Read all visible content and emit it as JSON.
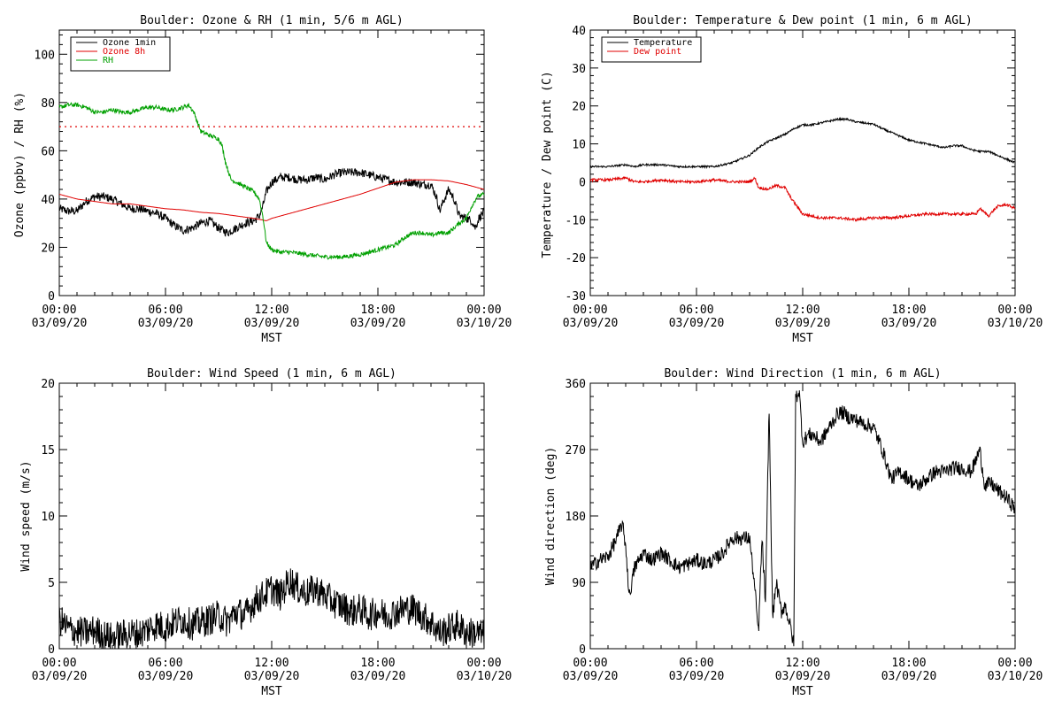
{
  "chart_data": [
    {
      "type": "line",
      "title": "Boulder: Ozone & RH (1 min, 5/6 m AGL)",
      "ylabel": "Ozone (ppbv) / RH (%)",
      "xlabel": "",
      "ylim": [
        0,
        110
      ],
      "yticks": [
        0,
        20,
        40,
        60,
        80,
        100
      ],
      "x_hours": [
        0,
        24
      ],
      "legend": "top-left",
      "reference_line": {
        "y": 70,
        "style": "dotted",
        "color": "#e00000"
      },
      "series": [
        {
          "name": "Ozone 1min",
          "color": "#000000",
          "noise": 1.8,
          "x": [
            0,
            0.5,
            1,
            1.5,
            2,
            2.5,
            3,
            3.5,
            4,
            4.5,
            5,
            5.5,
            6,
            6.5,
            7,
            7.5,
            8,
            8.5,
            9,
            9.5,
            10,
            10.5,
            11,
            11.3,
            11.5,
            11.7,
            12,
            12.5,
            13,
            13.5,
            14,
            14.5,
            15,
            15.5,
            16,
            16.5,
            17,
            17.5,
            18,
            18.5,
            19,
            19.5,
            20,
            20.5,
            21,
            21.3,
            21.5,
            21.7,
            22,
            22.3,
            22.6,
            23,
            23.3,
            23.5,
            23.7,
            24
          ],
          "y": [
            36,
            35,
            35,
            39,
            41,
            41,
            40,
            38,
            36,
            36,
            35,
            34,
            32,
            29,
            27,
            28,
            30,
            31,
            28,
            26,
            28,
            30,
            31,
            33,
            37,
            43,
            47,
            49,
            49,
            48,
            48,
            49,
            48,
            50,
            51,
            51,
            51,
            50,
            49,
            48,
            47,
            47,
            47,
            46,
            46,
            41,
            35,
            39,
            44,
            40,
            33,
            32,
            31,
            28,
            32,
            35
          ]
        },
        {
          "name": "Ozone 8h",
          "color": "#e00000",
          "noise": 0,
          "x": [
            0,
            1,
            2,
            3,
            4,
            5,
            6,
            7,
            8,
            9,
            10,
            11,
            11.7,
            12,
            13,
            14,
            15,
            16,
            17,
            18,
            19,
            20,
            21,
            22,
            23,
            24
          ],
          "y": [
            42,
            40,
            39,
            38,
            38,
            37,
            36,
            35.5,
            34.5,
            34,
            33,
            32,
            31,
            32,
            34,
            36,
            38,
            40,
            42,
            44.5,
            47,
            48,
            48,
            47.5,
            46,
            44
          ]
        },
        {
          "name": "RH",
          "color": "#00a000",
          "noise": 0.9,
          "x": [
            0,
            0.5,
            1,
            1.5,
            2,
            2.5,
            3,
            3.5,
            4,
            4.5,
            5,
            5.5,
            6,
            6.5,
            7,
            7.3,
            7.6,
            8,
            8.3,
            8.6,
            9,
            9.2,
            9.4,
            9.7,
            10,
            10.5,
            11,
            11.3,
            11.5,
            11.7,
            12,
            12.5,
            13,
            14,
            15,
            16,
            17,
            18,
            19,
            19.5,
            20,
            20.5,
            21,
            21.5,
            22,
            22.3,
            22.6,
            23,
            23.3,
            23.6,
            24
          ],
          "y": [
            78,
            79,
            79,
            78,
            76,
            76,
            77,
            76,
            76,
            77,
            78,
            78,
            77,
            77,
            78,
            79,
            76,
            68,
            67,
            66,
            65,
            62,
            55,
            48,
            47,
            45,
            43,
            40,
            33,
            22,
            19,
            18,
            18,
            17,
            16,
            16,
            17,
            19,
            21,
            24,
            26,
            26,
            25,
            26,
            26,
            28,
            30,
            32,
            37,
            41,
            42
          ]
        }
      ]
    },
    {
      "type": "line",
      "title": "Boulder: Temperature & Dew point (1 min, 6 m AGL)",
      "ylabel": "Temperature / Dew point (C)",
      "xlabel": "",
      "ylim": [
        -30,
        40
      ],
      "yticks": [
        -30,
        -20,
        -10,
        0,
        10,
        20,
        30,
        40
      ],
      "x_hours": [
        0,
        24
      ],
      "legend": "top-left",
      "series": [
        {
          "name": "Temperature",
          "color": "#000000",
          "noise": 0.25,
          "x": [
            0,
            1,
            2,
            2.5,
            3,
            4,
            5,
            6,
            7,
            8,
            9,
            9.5,
            10,
            10.5,
            11,
            11.5,
            12,
            12.5,
            13,
            13.5,
            14,
            14.5,
            15,
            15.5,
            16,
            16.5,
            17,
            17.5,
            18,
            18.5,
            19,
            19.5,
            20,
            20.5,
            21,
            21.5,
            22,
            22.5,
            23,
            23.5,
            24
          ],
          "y": [
            4,
            4,
            4.5,
            4,
            4.5,
            4.5,
            4,
            4,
            4,
            5,
            7,
            9,
            10.5,
            11.5,
            12.5,
            14,
            15,
            15,
            15.5,
            16,
            16.5,
            16.5,
            15.8,
            15.5,
            15.2,
            14,
            13,
            12,
            11,
            10.5,
            10,
            9.5,
            9,
            9.5,
            9.5,
            8.5,
            8,
            8,
            7,
            6,
            5
          ]
        },
        {
          "name": "Dew point",
          "color": "#e00000",
          "noise": 0.35,
          "x": [
            0,
            1,
            2,
            2.5,
            3,
            4,
            5,
            6,
            7,
            8,
            9,
            9.3,
            9.5,
            10,
            10.5,
            11,
            11.3,
            11.6,
            12,
            12.5,
            13,
            14,
            15,
            16,
            17,
            18,
            19,
            20,
            21,
            21.5,
            21.8,
            22,
            22.5,
            23,
            23.5,
            24
          ],
          "y": [
            0.5,
            0.5,
            1,
            0,
            0,
            0.5,
            0,
            0,
            0.5,
            0,
            0,
            1,
            -1.5,
            -2,
            -1,
            -1.5,
            -4,
            -6,
            -8.5,
            -9,
            -9.5,
            -9.5,
            -10,
            -9.5,
            -9.5,
            -9,
            -8.5,
            -8.5,
            -8.5,
            -8.5,
            -8.5,
            -7,
            -9,
            -6.5,
            -6,
            -7
          ]
        }
      ]
    },
    {
      "type": "line",
      "title": "Boulder: Wind Speed (1 min, 6 m AGL)",
      "ylabel": "Wind speed (m/s)",
      "xlabel": "",
      "ylim": [
        0,
        20
      ],
      "yticks": [
        0,
        5,
        10,
        15,
        20
      ],
      "x_hours": [
        0,
        24
      ],
      "series": [
        {
          "name": "",
          "color": "#000000",
          "noise": 1.2,
          "x": [
            0,
            0.5,
            1,
            1.5,
            2,
            2.5,
            3,
            3.5,
            4,
            4.5,
            5,
            5.5,
            6,
            6.5,
            7,
            7.5,
            8,
            8.5,
            9,
            9.5,
            10,
            10.5,
            11,
            11.5,
            12,
            12.5,
            13,
            13.5,
            14,
            14.5,
            15,
            15.5,
            16,
            16.5,
            17,
            17.5,
            18,
            18.5,
            19,
            19.5,
            20,
            20.5,
            21,
            21.5,
            22,
            22.5,
            23,
            23.5,
            24
          ],
          "y": [
            2.2,
            1.5,
            1.3,
            1.2,
            1.4,
            1.0,
            0.8,
            1.0,
            1.2,
            1.1,
            1.5,
            1.8,
            1.6,
            2.0,
            2.2,
            1.8,
            2.0,
            2.2,
            2.5,
            2.0,
            2.8,
            2.5,
            3.5,
            4.0,
            4.5,
            4.0,
            5.2,
            4.5,
            4.2,
            4.5,
            4.0,
            3.5,
            3.2,
            2.8,
            3.0,
            2.5,
            2.8,
            2.5,
            2.8,
            3.0,
            3.0,
            2.5,
            2.0,
            1.2,
            1.5,
            1.8,
            1.2,
            1.2,
            1.0
          ]
        }
      ]
    },
    {
      "type": "line",
      "title": "Boulder: Wind Direction (1 min, 6 m AGL)",
      "ylabel": "Wind direction (deg)",
      "xlabel": "",
      "ylim": [
        0,
        360
      ],
      "yticks": [
        0,
        90,
        180,
        270,
        360
      ],
      "x_hours": [
        0,
        24
      ],
      "series": [
        {
          "name": "",
          "color": "#000000",
          "noise": 10,
          "x": [
            0,
            0.5,
            1,
            1.5,
            1.8,
            2,
            2.2,
            2.5,
            3,
            3.5,
            4,
            4.5,
            5,
            5.5,
            6,
            6.5,
            7,
            7.5,
            8,
            8.5,
            9,
            9.3,
            9.5,
            9.7,
            9.9,
            10.1,
            10.3,
            10.5,
            10.8,
            11,
            11.3,
            11.5,
            11.6,
            11.8,
            12,
            12.3,
            12.6,
            13,
            13.5,
            14,
            14.3,
            14.5,
            15,
            15.5,
            16,
            16.5,
            17,
            17.5,
            18,
            18.5,
            19,
            19.5,
            20,
            20.5,
            21,
            21.5,
            21.7,
            22,
            22.3,
            22.6,
            23,
            23.5,
            24
          ],
          "y": [
            110,
            120,
            125,
            150,
            170,
            140,
            70,
            110,
            130,
            120,
            130,
            120,
            110,
            115,
            120,
            115,
            120,
            130,
            150,
            150,
            150,
            80,
            20,
            150,
            60,
            330,
            40,
            90,
            50,
            60,
            30,
            5,
            340,
            350,
            280,
            290,
            290,
            280,
            300,
            320,
            320,
            315,
            310,
            305,
            300,
            270,
            230,
            240,
            230,
            220,
            230,
            240,
            240,
            245,
            245,
            240,
            250,
            270,
            220,
            225,
            215,
            205,
            190
          ]
        }
      ]
    }
  ],
  "x_tick_times": [
    "00:00",
    "06:00",
    "12:00",
    "18:00",
    "00:00"
  ],
  "x_tick_dates": [
    "03/09/20",
    "03/09/20",
    "03/09/20",
    "03/09/20",
    "03/10/20"
  ],
  "x_axis_label": "MST"
}
